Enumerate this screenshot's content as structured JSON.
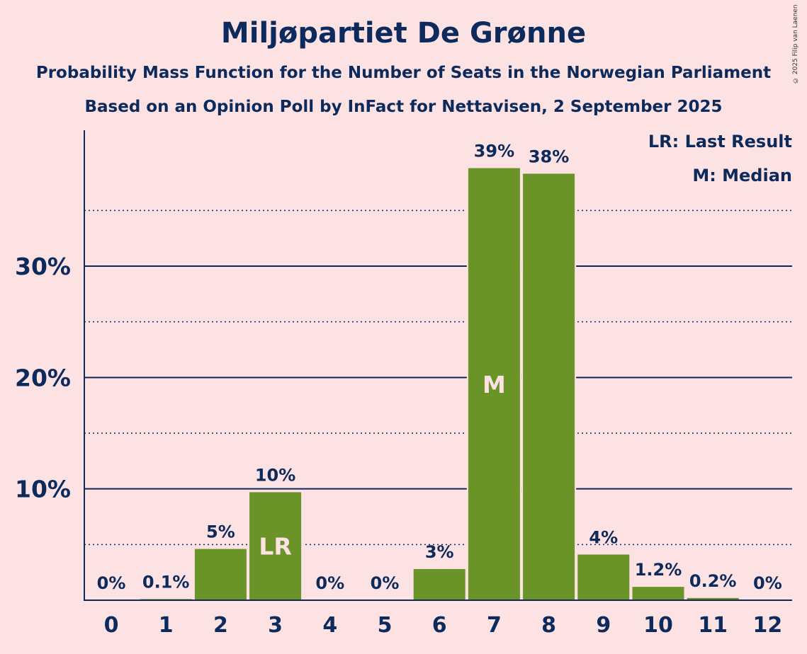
{
  "chart_data": {
    "type": "bar",
    "title": "Miljøpartiet De Grønne",
    "subtitle": "Probability Mass Function for the Number of Seats in the Norwegian Parliament",
    "subtitle2": "Based on an Opinion Poll by InFact for Nettavisen, 2 September 2025",
    "categories": [
      "0",
      "1",
      "2",
      "3",
      "4",
      "5",
      "6",
      "7",
      "8",
      "9",
      "10",
      "11",
      "12"
    ],
    "values": [
      0,
      0.1,
      4.6,
      9.7,
      0,
      0,
      2.8,
      38.8,
      38.3,
      4.1,
      1.2,
      0.2,
      0
    ],
    "data_labels": [
      "0%",
      "0.1%",
      "5%",
      "10%",
      "0%",
      "0%",
      "3%",
      "39%",
      "38%",
      "4%",
      "1.2%",
      "0.2%",
      "0%"
    ],
    "bar_markers": {
      "3": "LR",
      "7": "M"
    },
    "yticks": [
      10,
      20,
      30
    ],
    "ytick_labels": [
      "10%",
      "20%",
      "30%"
    ],
    "ylim": [
      0,
      42
    ],
    "grid": "major solid, minor dotted",
    "bar_color": "#6A9427",
    "legend": {
      "placement": "top-right",
      "entries": [
        "LR: Last Result",
        "M: Median"
      ]
    },
    "copyright": "© 2025 Filip van Laenen"
  }
}
